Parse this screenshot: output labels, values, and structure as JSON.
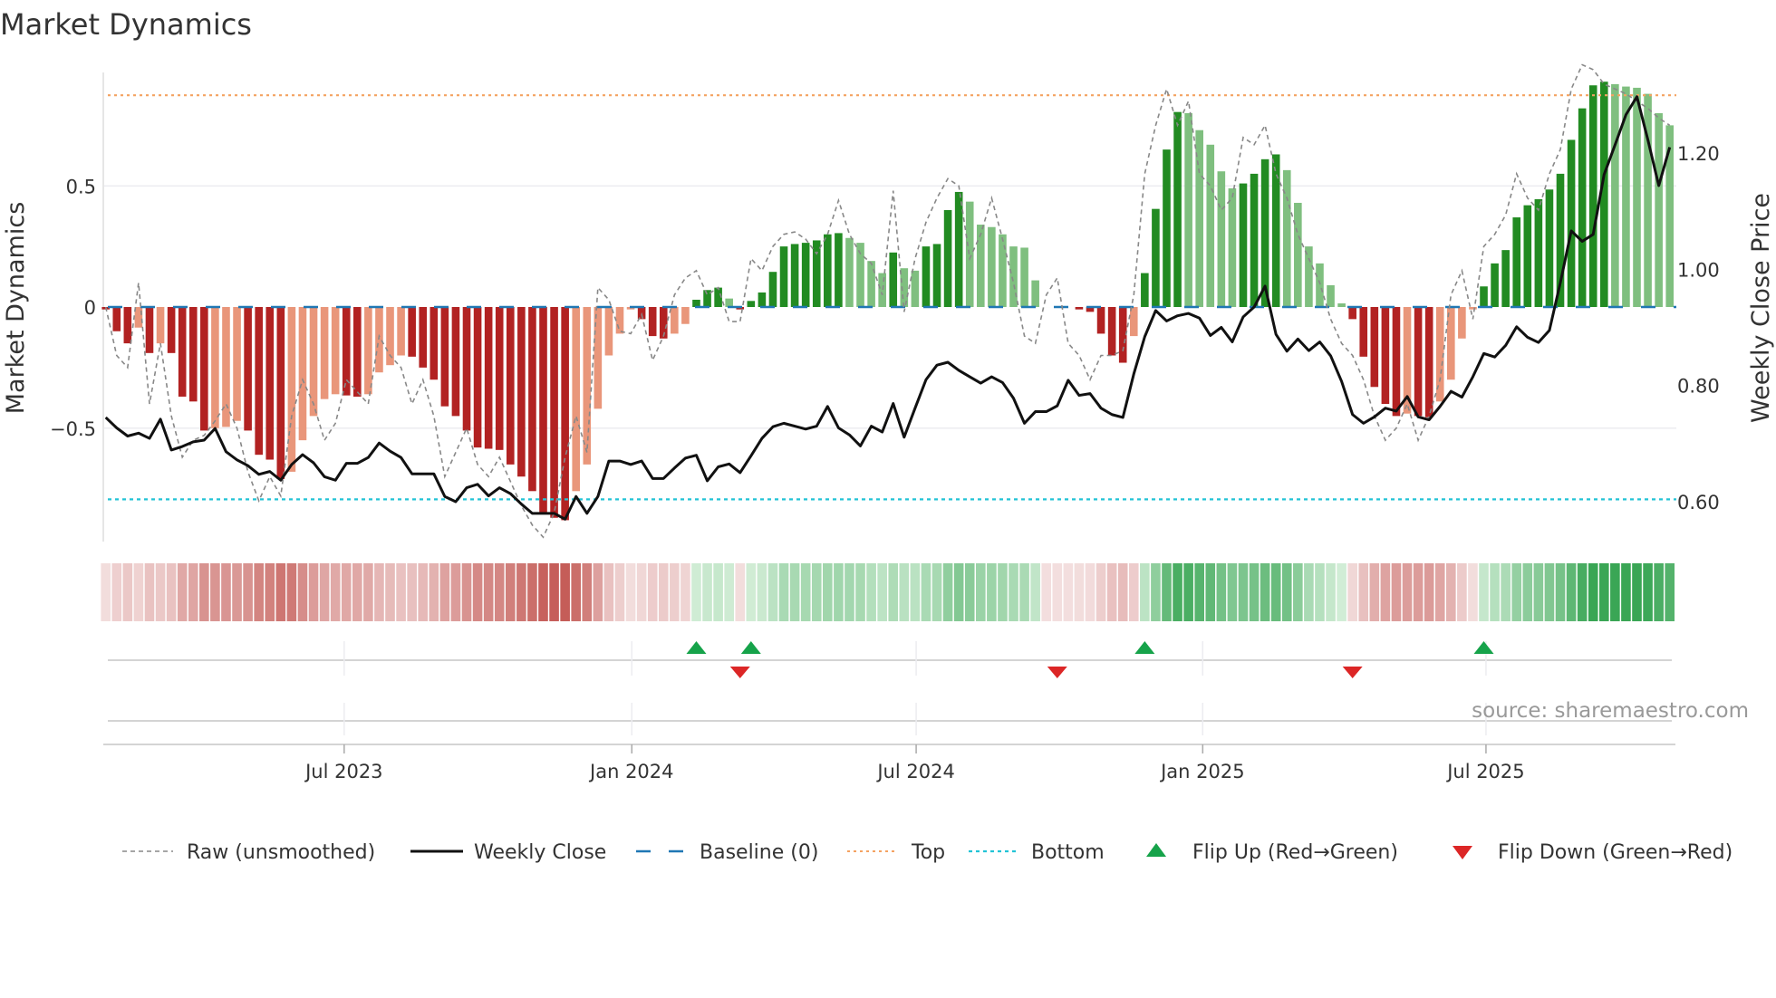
{
  "chart_data": {
    "type": "bar",
    "title": "Market Dynamics",
    "ylabel": "Market Dynamics",
    "y2label": "Weekly Close Price",
    "ylim": [
      -0.97,
      1.0
    ],
    "y2lim": [
      0.55,
      1.35
    ],
    "yticks": [
      {
        "v": 0.5,
        "label": "0.5"
      },
      {
        "v": 0,
        "label": "0"
      },
      {
        "v": -0.5,
        "label": "−0.5"
      }
    ],
    "y2ticks": [
      {
        "v": 1.2,
        "label": "1.20"
      },
      {
        "v": 1.0,
        "label": "1.00"
      },
      {
        "v": 0.8,
        "label": "0.80"
      },
      {
        "v": 0.6,
        "label": "0.60"
      }
    ],
    "x_unit": "week index (1 = first weekly bar)",
    "xticks": [
      {
        "week": 22.8,
        "label": "Jul 2023"
      },
      {
        "week": 49.1,
        "label": "Jan 2024"
      },
      {
        "week": 75.1,
        "label": "Jul 2024"
      },
      {
        "week": 101.3,
        "label": "Jan 2025"
      },
      {
        "week": 127.2,
        "label": "Jul 2025"
      }
    ],
    "top_level": 0.874,
    "bottom_level": -0.794,
    "baseline": 0,
    "series": [
      {
        "name": "Market Dynamics (smoothed)",
        "type": "bar",
        "values": [
          -0.01,
          -0.1,
          -0.15,
          -0.085,
          -0.19,
          -0.15,
          -0.19,
          -0.37,
          -0.39,
          -0.51,
          -0.5,
          -0.495,
          -0.47,
          -0.51,
          -0.61,
          -0.63,
          -0.71,
          -0.68,
          -0.55,
          -0.45,
          -0.38,
          -0.36,
          -0.365,
          -0.37,
          -0.36,
          -0.27,
          -0.24,
          -0.2,
          -0.205,
          -0.25,
          -0.3,
          -0.41,
          -0.45,
          -0.51,
          -0.58,
          -0.585,
          -0.59,
          -0.65,
          -0.7,
          -0.76,
          -0.85,
          -0.87,
          -0.88,
          -0.76,
          -0.65,
          -0.42,
          -0.2,
          -0.11,
          -0.01,
          -0.05,
          -0.12,
          -0.13,
          -0.11,
          -0.07,
          0.03,
          0.07,
          0.08,
          0.035,
          -0.01,
          0.025,
          0.06,
          0.145,
          0.25,
          0.26,
          0.265,
          0.275,
          0.3,
          0.305,
          0.285,
          0.265,
          0.19,
          0.14,
          0.225,
          0.16,
          0.15,
          0.25,
          0.26,
          0.4,
          0.475,
          0.435,
          0.34,
          0.33,
          0.3,
          0.25,
          0.245,
          0.11,
          0,
          0,
          0,
          -0.01,
          -0.02,
          -0.11,
          -0.2,
          -0.23,
          -0.12,
          0.14,
          0.405,
          0.65,
          0.805,
          0.8,
          0.73,
          0.67,
          0.56,
          0.49,
          0.51,
          0.55,
          0.61,
          0.63,
          0.565,
          0.43,
          0.25,
          0.18,
          0.09,
          0.015,
          -0.05,
          -0.205,
          -0.33,
          -0.4,
          -0.45,
          -0.44,
          -0.45,
          -0.455,
          -0.39,
          -0.3,
          -0.13,
          -0.01,
          0.085,
          0.18,
          0.235,
          0.37,
          0.42,
          0.445,
          0.485,
          0.55,
          0.69,
          0.82,
          0.915,
          0.93,
          0.92,
          0.91,
          0.905,
          0.88,
          0.8,
          0.75
        ]
      },
      {
        "name": "Raw (unsmoothed)",
        "type": "line",
        "values": [
          0.0,
          -0.2,
          -0.25,
          0.1,
          -0.4,
          -0.15,
          -0.45,
          -0.62,
          -0.55,
          -0.53,
          -0.47,
          -0.4,
          -0.5,
          -0.68,
          -0.8,
          -0.7,
          -0.78,
          -0.45,
          -0.3,
          -0.4,
          -0.55,
          -0.48,
          -0.3,
          -0.35,
          -0.4,
          -0.12,
          -0.2,
          -0.25,
          -0.4,
          -0.3,
          -0.45,
          -0.7,
          -0.6,
          -0.5,
          -0.65,
          -0.7,
          -0.62,
          -0.72,
          -0.82,
          -0.9,
          -0.95,
          -0.85,
          -0.62,
          -0.45,
          -0.6,
          0.08,
          0.03,
          -0.1,
          -0.11,
          -0.03,
          -0.22,
          -0.12,
          0.05,
          0.12,
          0.15,
          0.05,
          0.08,
          -0.06,
          -0.06,
          0.2,
          0.15,
          0.25,
          0.3,
          0.31,
          0.28,
          0.22,
          0.3,
          0.44,
          0.3,
          0.22,
          0.18,
          0.05,
          0.48,
          -0.02,
          0.2,
          0.35,
          0.45,
          0.53,
          0.5,
          0.2,
          0.3,
          0.45,
          0.28,
          0.1,
          -0.12,
          -0.15,
          0.05,
          0.12,
          -0.15,
          -0.2,
          -0.3,
          -0.2,
          -0.2,
          -0.18,
          0.05,
          0.55,
          0.75,
          0.9,
          0.75,
          0.85,
          0.55,
          0.5,
          0.4,
          0.45,
          0.7,
          0.67,
          0.75,
          0.55,
          0.45,
          0.3,
          0.2,
          0.1,
          -0.05,
          -0.15,
          -0.2,
          -0.3,
          -0.45,
          -0.55,
          -0.5,
          -0.4,
          -0.55,
          -0.45,
          -0.3,
          0.05,
          0.15,
          -0.05,
          0.25,
          0.3,
          0.38,
          0.55,
          0.45,
          0.4,
          0.55,
          0.65,
          0.9,
          1.0,
          0.98,
          0.92,
          0.9,
          0.88,
          0.85,
          0.82,
          0.78,
          0.75
        ]
      },
      {
        "name": "Weekly Close",
        "type": "line",
        "axis": "right",
        "values": [
          0.745,
          0.727,
          0.713,
          0.718,
          0.709,
          0.742,
          0.689,
          0.695,
          0.703,
          0.706,
          0.726,
          0.686,
          0.672,
          0.662,
          0.647,
          0.652,
          0.637,
          0.664,
          0.681,
          0.667,
          0.643,
          0.637,
          0.666,
          0.666,
          0.676,
          0.701,
          0.687,
          0.676,
          0.648,
          0.648,
          0.648,
          0.609,
          0.6,
          0.624,
          0.63,
          0.61,
          0.624,
          0.614,
          0.596,
          0.58,
          0.58,
          0.58,
          0.57,
          0.609,
          0.58,
          0.609,
          0.67,
          0.67,
          0.664,
          0.67,
          0.64,
          0.64,
          0.658,
          0.675,
          0.68,
          0.636,
          0.66,
          0.665,
          0.65,
          0.679,
          0.709,
          0.729,
          0.735,
          0.73,
          0.725,
          0.73,
          0.764,
          0.727,
          0.715,
          0.696,
          0.73,
          0.72,
          0.769,
          0.711,
          0.761,
          0.81,
          0.835,
          0.84,
          0.826,
          0.815,
          0.804,
          0.815,
          0.805,
          0.778,
          0.735,
          0.755,
          0.755,
          0.765,
          0.809,
          0.783,
          0.786,
          0.761,
          0.75,
          0.745,
          0.82,
          0.884,
          0.929,
          0.911,
          0.92,
          0.924,
          0.916,
          0.886,
          0.9,
          0.875,
          0.918,
          0.935,
          0.971,
          0.888,
          0.859,
          0.88,
          0.86,
          0.875,
          0.851,
          0.807,
          0.75,
          0.735,
          0.746,
          0.761,
          0.756,
          0.781,
          0.746,
          0.741,
          0.764,
          0.79,
          0.78,
          0.815,
          0.855,
          0.849,
          0.869,
          0.901,
          0.883,
          0.874,
          0.895,
          0.977,
          1.066,
          1.048,
          1.06,
          1.163,
          1.214,
          1.266,
          1.297,
          1.223,
          1.144,
          1.21
        ]
      }
    ],
    "flip_up_weeks": [
      55,
      60,
      96,
      127
    ],
    "flip_down_weeks": [
      59,
      88,
      115
    ],
    "legend": {
      "placement": "bottom",
      "items": [
        {
          "key": "raw",
          "label": "Raw (unsmoothed)"
        },
        {
          "key": "close",
          "label": "Weekly Close"
        },
        {
          "key": "baseline",
          "label": "Baseline (0)"
        },
        {
          "key": "top",
          "label": "Top"
        },
        {
          "key": "bottom",
          "label": "Bottom"
        },
        {
          "key": "flipup",
          "label": "Flip Up (Red→Green)"
        },
        {
          "key": "flipdown",
          "label": "Flip Down (Green→Red)"
        }
      ]
    },
    "source": "source: sharemaestro.com",
    "colors": {
      "bar_red_dark": "#b22222",
      "bar_red_light": "#e9967a",
      "bar_green_dark": "#228b22",
      "bar_green_light": "#7fbf7f",
      "close": "#111111",
      "raw": "#888888",
      "baseline": "#1f77b4",
      "top": "#f4a261",
      "bottom": "#22c3d6",
      "flip_up": "#16a34a",
      "flip_down": "#dc2626"
    }
  }
}
